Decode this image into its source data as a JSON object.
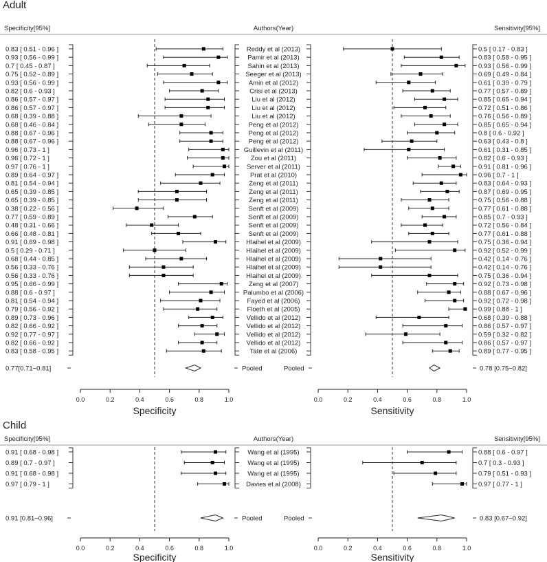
{
  "chart_data": {
    "type": "forest",
    "headers": {
      "specificity": "Specificity[95%]",
      "authors": "Authors(Year)",
      "sensitivity": "Sensitivity[95%]"
    },
    "axis": {
      "specificity_label": "Specificity",
      "sensitivity_label": "Sensitivity",
      "xlim": [
        0,
        1
      ],
      "ticks": [
        "0.0",
        "0.2",
        "0.4",
        "0.6",
        "0.8",
        "1.0"
      ],
      "reference_line": 0.5
    },
    "sections": [
      {
        "title": "Adult",
        "studies": [
          {
            "author": "Reddy et al (2013)",
            "spec_text": "0.83  [ 0.51 - 0.96 ]",
            "spec": [
              0.83,
              0.51,
              0.96
            ],
            "sens_text": "0.5  [ 0.17 - 0.83 ]",
            "sens": [
              0.5,
              0.17,
              0.83
            ]
          },
          {
            "author": "Pamir et al (2013)",
            "spec_text": "0.93  [ 0.56 - 0.99 ]",
            "spec": [
              0.93,
              0.56,
              0.99
            ],
            "sens_text": "0.83  [ 0.58 - 0.95 ]",
            "sens": [
              0.83,
              0.58,
              0.95
            ]
          },
          {
            "author": "Sahin et al (2013)",
            "spec_text": "0.7  [ 0.45 - 0.87 ]",
            "spec": [
              0.7,
              0.45,
              0.87
            ],
            "sens_text": "0.93  [ 0.56 - 0.99 ]",
            "sens": [
              0.93,
              0.56,
              0.99
            ]
          },
          {
            "author": "Seeger et al (2013)",
            "spec_text": "0.75  [ 0.52 - 0.89 ]",
            "spec": [
              0.75,
              0.52,
              0.89
            ],
            "sens_text": "0.69  [ 0.49 - 0.84 ]",
            "sens": [
              0.69,
              0.49,
              0.84
            ]
          },
          {
            "author": "Amin et al (2012)",
            "spec_text": "0.93  [ 0.56 - 0.99 ]",
            "spec": [
              0.93,
              0.56,
              0.99
            ],
            "sens_text": "0.61  [ 0.39 - 0.79 ]",
            "sens": [
              0.61,
              0.39,
              0.79
            ]
          },
          {
            "author": "Crisi et al (2013)",
            "spec_text": "0.82  [ 0.6 - 0.93 ]",
            "spec": [
              0.82,
              0.6,
              0.93
            ],
            "sens_text": "0.77  [ 0.57 - 0.89 ]",
            "sens": [
              0.77,
              0.57,
              0.89
            ]
          },
          {
            "author": "Liu et al (2012)",
            "spec_text": "0.86  [ 0.57 - 0.97 ]",
            "spec": [
              0.86,
              0.57,
              0.97
            ],
            "sens_text": "0.85  [ 0.65 - 0.94 ]",
            "sens": [
              0.85,
              0.65,
              0.94
            ]
          },
          {
            "author": "Liu et al (2012)",
            "spec_text": "0.86  [ 0.57 - 0.97 ]",
            "spec": [
              0.86,
              0.57,
              0.97
            ],
            "sens_text": "0.72  [ 0.51 - 0.86 ]",
            "sens": [
              0.72,
              0.51,
              0.86
            ]
          },
          {
            "author": "Liu et al (2012)",
            "spec_text": "0.68  [ 0.39 - 0.88 ]",
            "spec": [
              0.68,
              0.39,
              0.88
            ],
            "sens_text": "0.76  [ 0.56 - 0.89 ]",
            "sens": [
              0.76,
              0.56,
              0.89
            ]
          },
          {
            "author": "Peng et al (2012)",
            "spec_text": "0.68  [ 0.46 - 0.84 ]",
            "spec": [
              0.68,
              0.46,
              0.84
            ],
            "sens_text": "0.85  [ 0.65 - 0.94 ]",
            "sens": [
              0.85,
              0.65,
              0.94
            ]
          },
          {
            "author": "Peng et al (2012)",
            "spec_text": "0.88  [ 0.67 - 0.96 ]",
            "spec": [
              0.88,
              0.67,
              0.96
            ],
            "sens_text": "0.8  [ 0.6 - 0.92 ]",
            "sens": [
              0.8,
              0.6,
              0.92
            ]
          },
          {
            "author": "Peng et al (2012)",
            "spec_text": "0.88  [ 0.67 - 0.96 ]",
            "spec": [
              0.88,
              0.67,
              0.96
            ],
            "sens_text": "0.63  [ 0.43 - 0.8 ]",
            "sens": [
              0.63,
              0.43,
              0.8
            ]
          },
          {
            "author": "Guillevin et al (2011)",
            "spec_text": "0.96  [ 0.73 - 1 ]",
            "spec": [
              0.96,
              0.73,
              1
            ],
            "sens_text": "0.61  [ 0.31 - 0.85 ]",
            "sens": [
              0.61,
              0.31,
              0.85
            ]
          },
          {
            "author": "Zou et al (2011)",
            "spec_text": "0.96  [ 0.72 - 1 ]",
            "spec": [
              0.96,
              0.72,
              1
            ],
            "sens_text": "0.82  [ 0.6 - 0.93 ]",
            "sens": [
              0.82,
              0.6,
              0.93
            ]
          },
          {
            "author": "Server et al (2011)",
            "spec_text": "0.97  [ 0.76 - 1 ]",
            "spec": [
              0.97,
              0.76,
              1
            ],
            "sens_text": "0.91  [ 0.81 - 0.96 ]",
            "sens": [
              0.91,
              0.81,
              0.96
            ]
          },
          {
            "author": "Prat et al (2010)",
            "spec_text": "0.89  [ 0.64 - 0.97 ]",
            "spec": [
              0.89,
              0.64,
              0.97
            ],
            "sens_text": "0.96  [ 0.7 - 1 ]",
            "sens": [
              0.96,
              0.7,
              1
            ]
          },
          {
            "author": "Zeng et al (2011)",
            "spec_text": "0.81  [ 0.54 - 0.94 ]",
            "spec": [
              0.81,
              0.54,
              0.94
            ],
            "sens_text": "0.83  [ 0.64 - 0.93 ]",
            "sens": [
              0.83,
              0.64,
              0.93
            ]
          },
          {
            "author": "Zeng et al (2011)",
            "spec_text": "0.65  [ 0.39 - 0.85 ]",
            "spec": [
              0.65,
              0.39,
              0.85
            ],
            "sens_text": "0.87  [ 0.69 - 0.95 ]",
            "sens": [
              0.87,
              0.69,
              0.95
            ]
          },
          {
            "author": "Zeng et al (2011)",
            "spec_text": "0.65  [ 0.39 - 0.85 ]",
            "spec": [
              0.65,
              0.39,
              0.85
            ],
            "sens_text": "0.75  [ 0.56 - 0.88 ]",
            "sens": [
              0.75,
              0.56,
              0.88
            ]
          },
          {
            "author": "Senft et al (2009)",
            "spec_text": "0.38  [ 0.22 - 0.56 ]",
            "spec": [
              0.38,
              0.22,
              0.56
            ],
            "sens_text": "0.77  [ 0.61 - 0.88 ]",
            "sens": [
              0.77,
              0.61,
              0.88
            ]
          },
          {
            "author": "Senft et al (2009)",
            "spec_text": "0.77  [ 0.59 - 0.89 ]",
            "spec": [
              0.77,
              0.59,
              0.89
            ],
            "sens_text": "0.85  [ 0.7 - 0.93 ]",
            "sens": [
              0.85,
              0.7,
              0.93
            ]
          },
          {
            "author": "Senft et al (2009)",
            "spec_text": "0.48  [ 0.31 - 0.66 ]",
            "spec": [
              0.48,
              0.31,
              0.66
            ],
            "sens_text": "0.72  [ 0.56 - 0.84 ]",
            "sens": [
              0.72,
              0.56,
              0.84
            ]
          },
          {
            "author": "Senft et al (2009)",
            "spec_text": "0.66  [ 0.48 - 0.81 ]",
            "spec": [
              0.66,
              0.48,
              0.81
            ],
            "sens_text": "0.77  [ 0.61 - 0.88 ]",
            "sens": [
              0.77,
              0.61,
              0.88
            ]
          },
          {
            "author": "Hlaihel et al (2009)",
            "spec_text": "0.91  [ 0.69 - 0.98 ]",
            "spec": [
              0.91,
              0.69,
              0.98
            ],
            "sens_text": "0.75  [ 0.36 - 0.94 ]",
            "sens": [
              0.75,
              0.36,
              0.94
            ]
          },
          {
            "author": "Hlaihel et al (2009)",
            "spec_text": "0.5  [ 0.29 - 0.71 ]",
            "spec": [
              0.5,
              0.29,
              0.71
            ],
            "sens_text": "0.92  [ 0.52 - 0.99 ]",
            "sens": [
              0.92,
              0.52,
              0.99
            ]
          },
          {
            "author": "Hlaihel et al (2009)",
            "spec_text": "0.68  [ 0.44 - 0.85 ]",
            "spec": [
              0.68,
              0.44,
              0.85
            ],
            "sens_text": "0.42  [ 0.14 - 0.76 ]",
            "sens": [
              0.42,
              0.14,
              0.76
            ]
          },
          {
            "author": "Hlaihel et al (2009)",
            "spec_text": "0.56  [ 0.33 - 0.76 ]",
            "spec": [
              0.56,
              0.33,
              0.76
            ],
            "sens_text": "0.42  [ 0.14 - 0.76 ]",
            "sens": [
              0.42,
              0.14,
              0.76
            ]
          },
          {
            "author": "Hlaihel et al (2009)",
            "spec_text": "0.56  [ 0.33 - 0.76 ]",
            "spec": [
              0.56,
              0.33,
              0.76
            ],
            "sens_text": "0.75  [ 0.36 - 0.94 ]",
            "sens": [
              0.75,
              0.36,
              0.94
            ]
          },
          {
            "author": "Zeng et al (2007)",
            "spec_text": "0.95  [ 0.66 - 0.99 ]",
            "spec": [
              0.95,
              0.66,
              0.99
            ],
            "sens_text": "0.92  [ 0.73 - 0.98 ]",
            "sens": [
              0.92,
              0.73,
              0.98
            ]
          },
          {
            "author": "Palumbo et al (2006)",
            "spec_text": "0.88  [ 0.6 - 0.97 ]",
            "spec": [
              0.88,
              0.6,
              0.97
            ],
            "sens_text": "0.88  [ 0.67 - 0.96 ]",
            "sens": [
              0.88,
              0.67,
              0.96
            ]
          },
          {
            "author": "Fayed et al (2006)",
            "spec_text": "0.81  [ 0.54 - 0.94 ]",
            "spec": [
              0.81,
              0.54,
              0.94
            ],
            "sens_text": "0.92  [ 0.72 - 0.98 ]",
            "sens": [
              0.92,
              0.72,
              0.98
            ]
          },
          {
            "author": "Floeth et al (2005)",
            "spec_text": "0.79  [ 0.56 - 0.92 ]",
            "spec": [
              0.79,
              0.56,
              0.92
            ],
            "sens_text": "0.99  [ 0.88 - 1 ]",
            "sens": [
              0.99,
              0.88,
              1
            ]
          },
          {
            "author": "Vellido et al (2012)",
            "spec_text": "0.89  [ 0.73 - 0.96 ]",
            "spec": [
              0.89,
              0.73,
              0.96
            ],
            "sens_text": "0.68  [ 0.39 - 0.88 ]",
            "sens": [
              0.68,
              0.39,
              0.88
            ]
          },
          {
            "author": "Vellido et al (2012)",
            "spec_text": "0.82  [ 0.66 - 0.92 ]",
            "spec": [
              0.82,
              0.66,
              0.92
            ],
            "sens_text": "0.86  [ 0.57 - 0.97 ]",
            "sens": [
              0.86,
              0.57,
              0.97
            ]
          },
          {
            "author": "Vellido et al (2012)",
            "spec_text": "0.92  [ 0.77 - 0.97 ]",
            "spec": [
              0.92,
              0.77,
              0.97
            ],
            "sens_text": "0.59  [ 0.32 - 0.82 ]",
            "sens": [
              0.59,
              0.32,
              0.82
            ]
          },
          {
            "author": "Vellido et al (2012)",
            "spec_text": "0.82  [ 0.66 - 0.92 ]",
            "spec": [
              0.82,
              0.66,
              0.92
            ],
            "sens_text": "0.86  [ 0.57 - 0.97 ]",
            "sens": [
              0.86,
              0.57,
              0.97
            ]
          },
          {
            "author": "Tate et al (2006)",
            "spec_text": "0.83  [ 0.58 - 0.95 ]",
            "spec": [
              0.83,
              0.58,
              0.95
            ],
            "sens_text": "0.89  [ 0.77 - 0.95 ]",
            "sens": [
              0.89,
              0.77,
              0.95
            ]
          }
        ],
        "pooled": {
          "spec_text": "0.77[0.71−0.81]",
          "spec": [
            0.77,
            0.71,
            0.81
          ],
          "sens_text": "0.78 [0.75−0.82]",
          "sens": [
            0.78,
            0.75,
            0.82
          ],
          "label": "Pooled"
        }
      },
      {
        "title": "Child",
        "studies": [
          {
            "author": "Wang et al (1995)",
            "spec_text": "0.91  [ 0.68 - 0.98 ]",
            "spec": [
              0.91,
              0.68,
              0.98
            ],
            "sens_text": "0.88  [ 0.6 - 0.97 ]",
            "sens": [
              0.88,
              0.6,
              0.97
            ]
          },
          {
            "author": "Wang et al (1995)",
            "spec_text": "0.89  [ 0.7 - 0.97 ]",
            "spec": [
              0.89,
              0.7,
              0.97
            ],
            "sens_text": "0.7  [ 0.3 - 0.93 ]",
            "sens": [
              0.7,
              0.3,
              0.93
            ]
          },
          {
            "author": "Wang et al (1995)",
            "spec_text": "0.91  [ 0.68 - 0.98 ]",
            "spec": [
              0.91,
              0.68,
              0.98
            ],
            "sens_text": "0.79  [ 0.51 - 0.93 ]",
            "sens": [
              0.79,
              0.51,
              0.93
            ]
          },
          {
            "author": "Davies et al (2008)",
            "spec_text": "0.97  [ 0.79 - 1 ]",
            "spec": [
              0.97,
              0.79,
              1
            ],
            "sens_text": "0.97  [ 0.77 - 1 ]",
            "sens": [
              0.97,
              0.77,
              1
            ]
          }
        ],
        "pooled": {
          "spec_text": "0.91 [0.81−0.96]",
          "spec": [
            0.91,
            0.81,
            0.96
          ],
          "sens_text": "0.83 [0.67−0.92]",
          "sens": [
            0.83,
            0.67,
            0.92
          ],
          "label": "Pooled"
        }
      }
    ]
  }
}
